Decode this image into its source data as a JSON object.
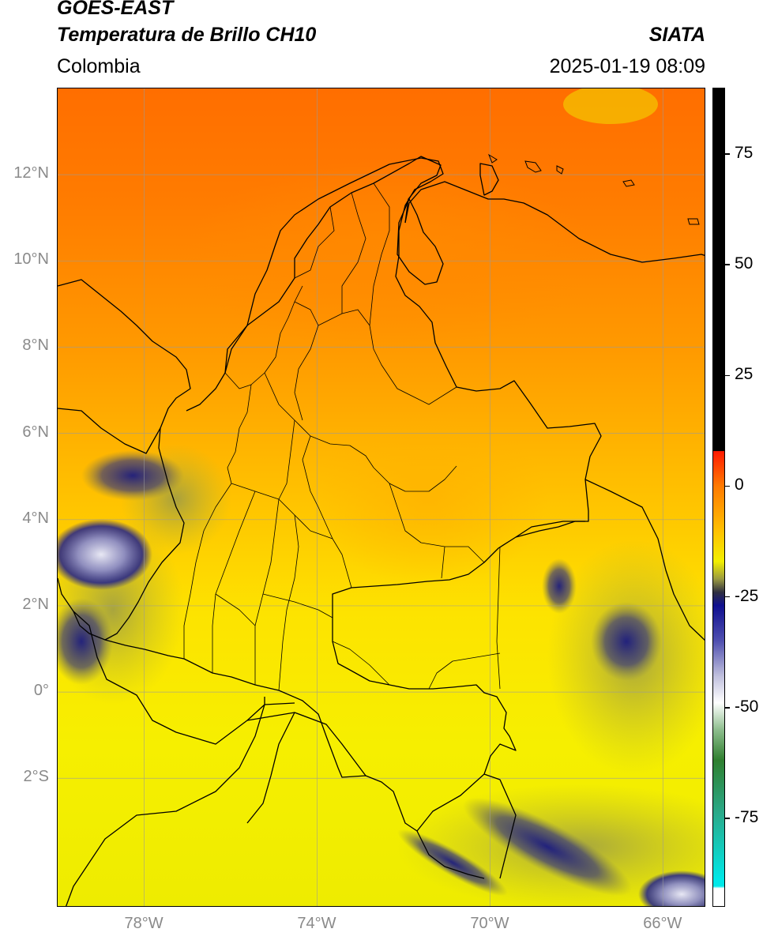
{
  "header": {
    "satellite": "GOES-EAST",
    "product": "Temperatura de Brillo CH10",
    "region": "Colombia",
    "organization": "SIATA",
    "timestamp": "2025-01-19 08:09"
  },
  "axes": {
    "lon_ticks": [
      {
        "value": -78,
        "label": "78°W"
      },
      {
        "value": -74,
        "label": "74°W"
      },
      {
        "value": -70,
        "label": "70°W"
      },
      {
        "value": -66,
        "label": "66°W"
      }
    ],
    "lat_ticks": [
      {
        "value": 12,
        "label": "12°N"
      },
      {
        "value": 10,
        "label": "10°N"
      },
      {
        "value": 8,
        "label": "8°N"
      },
      {
        "value": 6,
        "label": "6°N"
      },
      {
        "value": 4,
        "label": "4°N"
      },
      {
        "value": 2,
        "label": "2°N"
      },
      {
        "value": 0,
        "label": "0°"
      },
      {
        "value": -2,
        "label": "2°S"
      }
    ],
    "lon_range": [
      -80,
      -65
    ],
    "lat_range": [
      -5,
      14
    ],
    "grid": true
  },
  "colorbar": {
    "range": [
      -95,
      90
    ],
    "ticks": [
      {
        "value": 75,
        "label": "75"
      },
      {
        "value": 50,
        "label": "50"
      },
      {
        "value": 25,
        "label": "25"
      },
      {
        "value": 0,
        "label": "0"
      },
      {
        "value": -25,
        "label": "-25"
      },
      {
        "value": -50,
        "label": "-50"
      },
      {
        "value": -75,
        "label": "-75"
      }
    ],
    "stops": [
      {
        "value": 90,
        "color": "#000000"
      },
      {
        "value": 8,
        "color": "#000000"
      },
      {
        "value": 7.9,
        "color": "#ff1a00"
      },
      {
        "value": 0,
        "color": "#ff7a00"
      },
      {
        "value": -10,
        "color": "#ffc000"
      },
      {
        "value": -17,
        "color": "#f2ef00"
      },
      {
        "value": -21,
        "color": "#9a9a40"
      },
      {
        "value": -24,
        "color": "#303040"
      },
      {
        "value": -27,
        "color": "#101090"
      },
      {
        "value": -35,
        "color": "#5050b0"
      },
      {
        "value": -43,
        "color": "#c0c0dd"
      },
      {
        "value": -49,
        "color": "#ffffff"
      },
      {
        "value": -55,
        "color": "#8fbf8f"
      },
      {
        "value": -62,
        "color": "#2f7f2f"
      },
      {
        "value": -74,
        "color": "#2aaa8a"
      },
      {
        "value": -89,
        "color": "#00e8e8"
      },
      {
        "value": -90.5,
        "color": "#00e8e8"
      },
      {
        "value": -91,
        "color": "#ffffff"
      },
      {
        "value": -95,
        "color": "#ffffff"
      }
    ]
  }
}
